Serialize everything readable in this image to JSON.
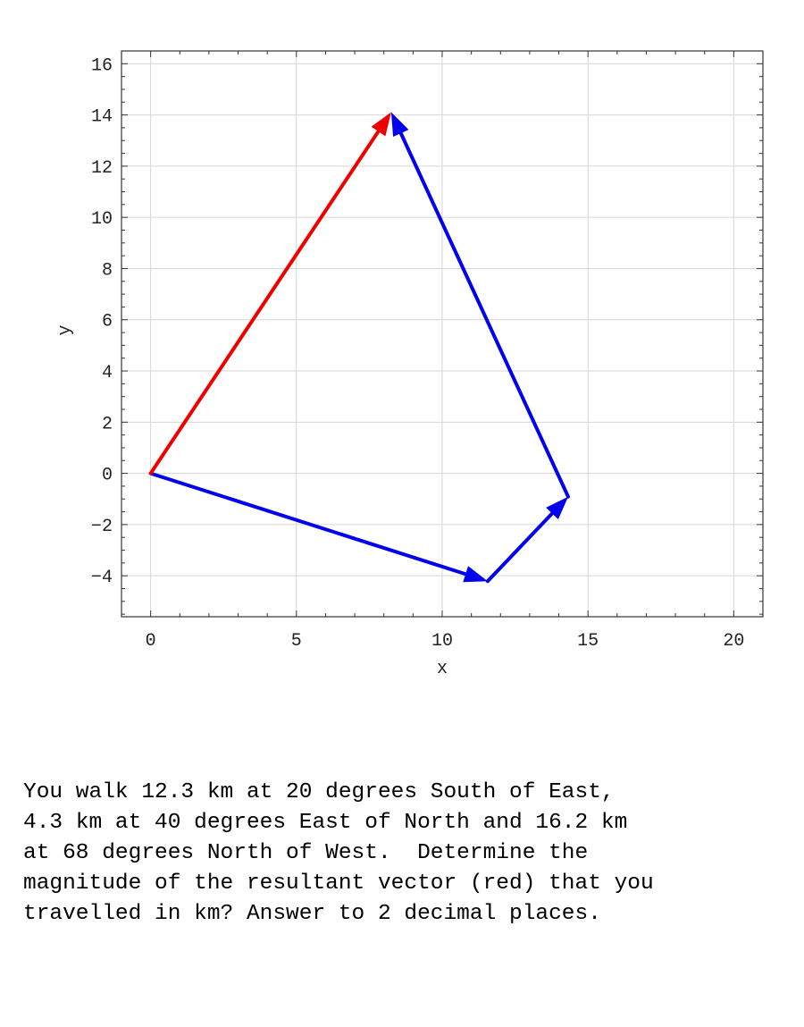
{
  "chart_data": {
    "type": "vector-diagram",
    "xlabel": "x",
    "ylabel": "y",
    "xlim": [
      -1,
      21
    ],
    "ylim": [
      -5.6,
      16.5
    ],
    "xticks": [
      0,
      5,
      10,
      15,
      20
    ],
    "yticks": [
      -4,
      -2,
      0,
      2,
      4,
      6,
      8,
      10,
      12,
      14,
      16
    ],
    "grid": true,
    "vectors": [
      {
        "from": [
          0,
          0
        ],
        "to": [
          11.56,
          -4.21
        ],
        "color": "#0000ee",
        "role": "component"
      },
      {
        "from": [
          11.56,
          -4.21
        ],
        "to": [
          14.32,
          -0.91
        ],
        "color": "#0000ee",
        "role": "component"
      },
      {
        "from": [
          14.32,
          -0.91
        ],
        "to": [
          8.25,
          14.11
        ],
        "color": "#0000ee",
        "role": "component"
      },
      {
        "from": [
          0,
          0
        ],
        "to": [
          8.25,
          14.11
        ],
        "color": "#ee0000",
        "role": "resultant"
      }
    ]
  },
  "question": {
    "lines": [
      "You walk 12.3 km at 20 degrees South of East,",
      "4.3 km at 40 degrees East of North and 16.2 km",
      "at 68 degrees North of West.  Determine the",
      "magnitude of the resultant vector (red) that you",
      "travelled in km? Answer to 2 decimal places."
    ]
  }
}
